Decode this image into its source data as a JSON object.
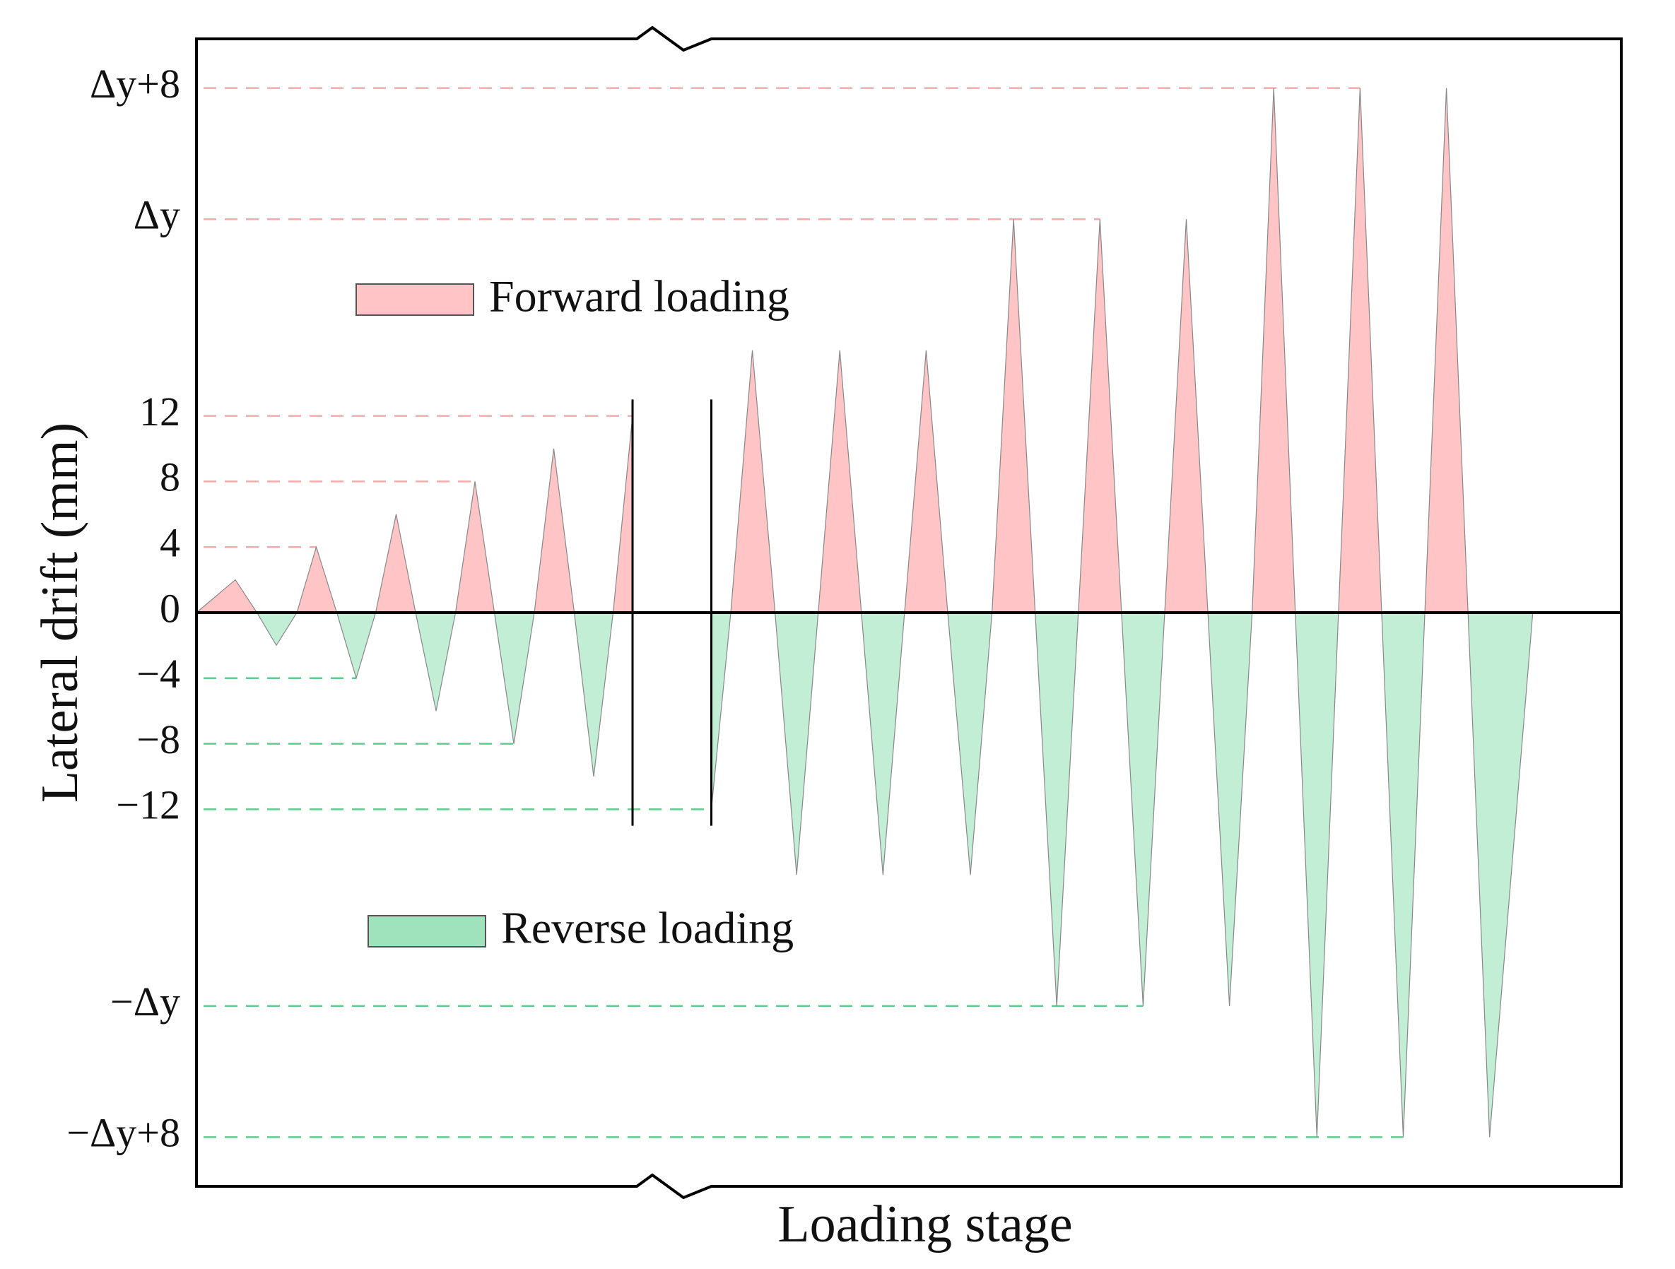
{
  "chart_data": {
    "type": "area",
    "x_label": "Loading stage",
    "y_label": "Lateral drift (mm)",
    "x": [
      0,
      3.6,
      5.6,
      7.4,
      9.3,
      11.1,
      13,
      14.8,
      16.6,
      18.5,
      20.3,
      22.2,
      24,
      25.8,
      27.6,
      29.4,
      31.3,
      33.1,
      35,
      36.8,
      38.6,
      40.4,
      null,
      47.7,
      49.5,
      51.5,
      53.6,
      55.6,
      57.6,
      59.6,
      61.6,
      63.6,
      65.6,
      67.6,
      69.6,
      71.7,
      73.7,
      75.7,
      77.7,
      79.7,
      81.7,
      83.7,
      85.7,
      87.7,
      89.7,
      91.7,
      93.7,
      95.7,
      97.8,
      99.8,
      101.8,
      103.8,
      105.8,
      107.8,
      109.8,
      111.8,
      113.8,
      115.8,
      117.8,
      119.8,
      123.8
    ],
    "values": [
      0,
      2,
      0,
      -2,
      0,
      4,
      0,
      -4,
      0,
      6,
      0,
      -6,
      0,
      8,
      0,
      -8,
      0,
      10,
      0,
      -10,
      0,
      12,
      null,
      -12,
      0,
      16,
      0,
      -16,
      0,
      16,
      0,
      -16,
      0,
      16,
      0,
      -16,
      0,
      24,
      0,
      -24,
      0,
      24,
      0,
      -24,
      0,
      24,
      0,
      -24,
      0,
      32,
      0,
      -32,
      0,
      32,
      0,
      -32,
      0,
      32,
      0,
      -32,
      0
    ],
    "positive_color": "#ffc4c6",
    "negative_color": "#c2eed6",
    "legend": [
      {
        "name": "Forward loading",
        "color": "#ffc4c6"
      },
      {
        "name": "Reverse loading",
        "color": "#9fe3bd"
      }
    ],
    "xlim": [
      0,
      132
    ],
    "ylim": [
      -35,
      35
    ],
    "yticks": [
      {
        "value": 32,
        "label": "Δy+8"
      },
      {
        "value": 24,
        "label": "Δy"
      },
      12,
      8,
      4,
      0,
      {
        "value": -4,
        "label": "−4"
      },
      {
        "value": -8,
        "label": "−8"
      },
      {
        "value": -12,
        "label": "−12"
      },
      {
        "value": -24,
        "label": "−Δy"
      },
      {
        "value": -32,
        "label": "−Δy+8"
      }
    ],
    "tick_guide_x": [
      107.8,
      83.7,
      40.4,
      25.8,
      11.1,
      null,
      14.8,
      29.4,
      47.7,
      87.7,
      111.8
    ],
    "positive_guide_color": "#f7a9ab",
    "negative_guide_color": "#5ccf8c",
    "break_lines": {
      "x": [
        40.4,
        47.7
      ],
      "ylim": [
        -13,
        13
      ]
    }
  }
}
